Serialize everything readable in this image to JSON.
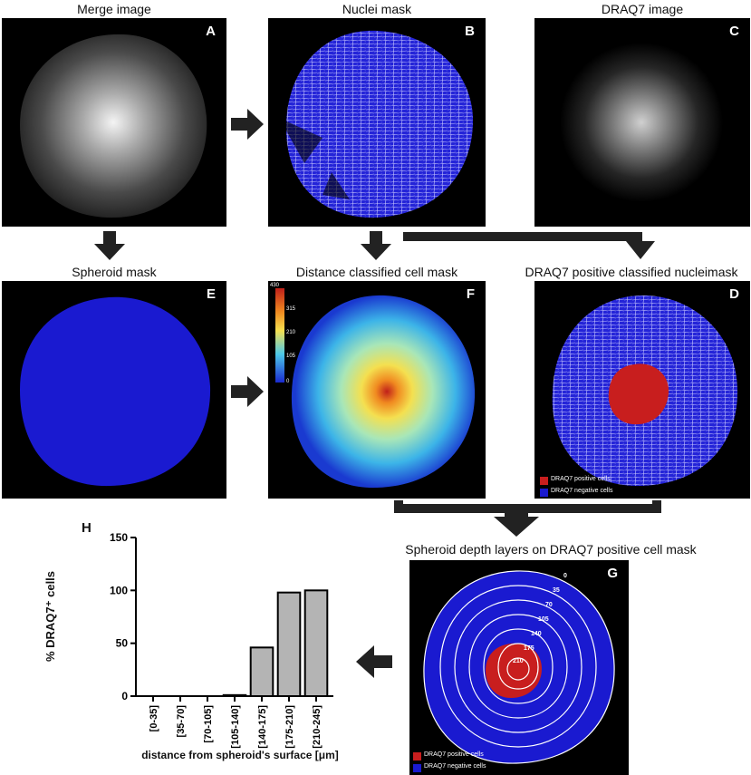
{
  "panels": {
    "A": {
      "title": "Merge image",
      "label": "A"
    },
    "B": {
      "title": "Nuclei mask",
      "label": "B"
    },
    "C": {
      "title": "DRAQ7 image",
      "label": "C"
    },
    "E": {
      "title": "Spheroid mask",
      "label": "E"
    },
    "F": {
      "title": "Distance classified cell mask",
      "label": "F",
      "colorbar_ticks": [
        "430",
        "315",
        "210",
        "105",
        "0"
      ]
    },
    "D": {
      "title": "DRAQ7 positive classified nucleimask",
      "label": "D",
      "legend": [
        "DRAQ7 positive cells",
        "DRAQ7 negative cells"
      ]
    },
    "G": {
      "title": "Spheroid depth layers on DRAQ7 positive cell mask",
      "label": "G",
      "ring_labels": [
        "0",
        "35",
        "70",
        "105",
        "140",
        "175",
        "210"
      ],
      "legend": [
        "DRAQ7 positive cells",
        "DRAQ7 negative cells"
      ]
    }
  },
  "colors": {
    "positive": "#c81e1e",
    "negative": "#1a1ad0",
    "bar": "#b4b4b4"
  },
  "chart_data": {
    "type": "bar",
    "label": "H",
    "categories": [
      "[0-35]",
      "[35-70]",
      "[70-105]",
      "[105-140]",
      "[140-175]",
      "[175-210]",
      "[210-245]"
    ],
    "values": [
      0,
      0,
      0,
      1,
      46,
      98,
      100
    ],
    "ylabel": "% DRAQ7⁺ cells",
    "xlabel": "distance from spheroid's surface [μm]",
    "yticks": [
      "0",
      "50",
      "100",
      "150"
    ],
    "ylim": [
      0,
      150
    ]
  }
}
